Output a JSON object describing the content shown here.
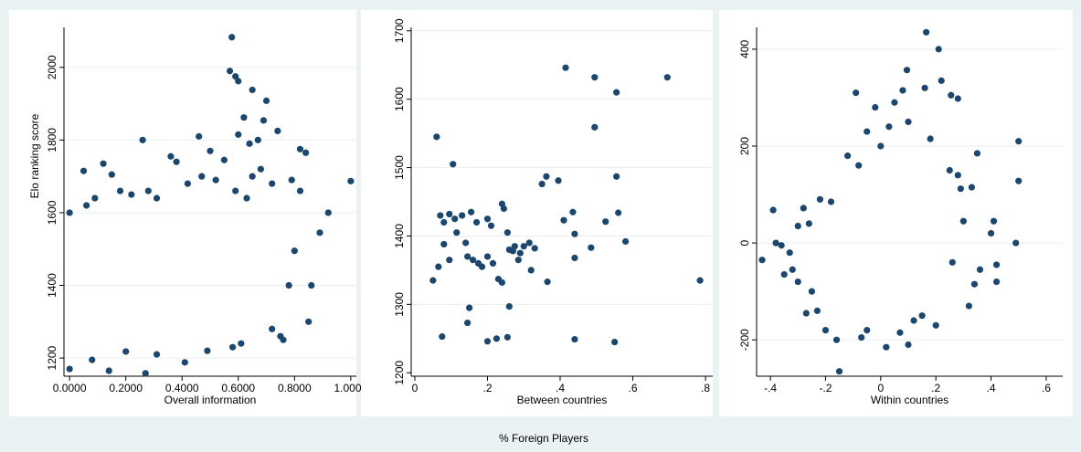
{
  "figure": {
    "shared_xlabel": "% Foreign Players",
    "background_color": "#eaf2f3",
    "panel_color": "#ffffff",
    "marker_color": "#1a476f",
    "grid_color": "#e9eff1"
  },
  "chart_data": [
    {
      "type": "scatter",
      "xlabel": "Overall information",
      "ylabel": "Elo ranking score",
      "xlim": [
        -0.02,
        1.02
      ],
      "ylim": [
        1150,
        2110
      ],
      "xticks": [
        0.0,
        0.2,
        0.4,
        0.6,
        0.8,
        1.0
      ],
      "xtick_labels": [
        "0.0000",
        "0.2000",
        "0.4000",
        "0.6000",
        "0.8000",
        "1.0000"
      ],
      "yticks": [
        1200,
        1400,
        1600,
        1800,
        2000
      ],
      "ytick_labels": [
        "1200",
        "1400",
        "1600",
        "1800",
        "2000"
      ],
      "grid": true,
      "points": [
        [
          0.577,
          2083
        ],
        [
          0.57,
          1990
        ],
        [
          0.6,
          1962
        ],
        [
          0.59,
          1975
        ],
        [
          0.65,
          1938
        ],
        [
          0.7,
          1908
        ],
        [
          0.62,
          1862
        ],
        [
          0.69,
          1854
        ],
        [
          0.74,
          1825
        ],
        [
          0.46,
          1810
        ],
        [
          0.26,
          1800
        ],
        [
          0.6,
          1815
        ],
        [
          0.64,
          1790
        ],
        [
          0.67,
          1800
        ],
        [
          0.82,
          1775
        ],
        [
          0.84,
          1765
        ],
        [
          1.0,
          1687
        ],
        [
          0.92,
          1600
        ],
        [
          0.89,
          1545
        ],
        [
          0.86,
          1400
        ],
        [
          0.85,
          1300
        ],
        [
          0.8,
          1495
        ],
        [
          0.78,
          1400
        ],
        [
          0.72,
          1280
        ],
        [
          0.75,
          1260
        ],
        [
          0.76,
          1250
        ],
        [
          0.61,
          1240
        ],
        [
          0.58,
          1230
        ],
        [
          0.2,
          1218
        ],
        [
          0.41,
          1188
        ],
        [
          0.14,
          1165
        ],
        [
          0.27,
          1158
        ],
        [
          0.0,
          1170
        ],
        [
          0.08,
          1195
        ],
        [
          0.31,
          1210
        ],
        [
          0.49,
          1220
        ],
        [
          0.0,
          1600
        ],
        [
          0.05,
          1715
        ],
        [
          0.12,
          1735
        ],
        [
          0.15,
          1705
        ],
        [
          0.36,
          1755
        ],
        [
          0.38,
          1740
        ],
        [
          0.5,
          1770
        ],
        [
          0.55,
          1745
        ],
        [
          0.65,
          1700
        ],
        [
          0.68,
          1720
        ],
        [
          0.72,
          1680
        ],
        [
          0.79,
          1690
        ],
        [
          0.82,
          1660
        ],
        [
          0.06,
          1620
        ],
        [
          0.09,
          1640
        ],
        [
          0.18,
          1660
        ],
        [
          0.22,
          1650
        ],
        [
          0.28,
          1660
        ],
        [
          0.31,
          1640
        ],
        [
          0.42,
          1680
        ],
        [
          0.47,
          1700
        ],
        [
          0.52,
          1690
        ],
        [
          0.59,
          1660
        ],
        [
          0.63,
          1640
        ]
      ]
    },
    {
      "type": "scatter",
      "xlabel": "Between countries",
      "ylabel": "",
      "xlim": [
        -0.01,
        0.82
      ],
      "ylim": [
        1195,
        1705
      ],
      "xticks": [
        0,
        0.2,
        0.4,
        0.6,
        0.8
      ],
      "xtick_labels": [
        "0",
        ".2",
        ".4",
        ".6",
        ".8"
      ],
      "yticks": [
        1200,
        1300,
        1400,
        1500,
        1600,
        1700
      ],
      "ytick_labels": [
        "1200",
        "1300",
        "1400",
        "1500",
        "1600",
        "1700"
      ],
      "grid": true,
      "points": [
        [
          0.415,
          1646
        ],
        [
          0.495,
          1632
        ],
        [
          0.555,
          1610
        ],
        [
          0.695,
          1632
        ],
        [
          0.495,
          1559
        ],
        [
          0.06,
          1545
        ],
        [
          0.105,
          1505
        ],
        [
          0.35,
          1476
        ],
        [
          0.362,
          1487
        ],
        [
          0.395,
          1481
        ],
        [
          0.555,
          1487
        ],
        [
          0.07,
          1430
        ],
        [
          0.095,
          1432
        ],
        [
          0.11,
          1425
        ],
        [
          0.13,
          1430
        ],
        [
          0.155,
          1435
        ],
        [
          0.2,
          1425
        ],
        [
          0.24,
          1447
        ],
        [
          0.245,
          1440
        ],
        [
          0.41,
          1423
        ],
        [
          0.435,
          1435
        ],
        [
          0.525,
          1421
        ],
        [
          0.56,
          1434
        ],
        [
          0.08,
          1420
        ],
        [
          0.115,
          1405
        ],
        [
          0.14,
          1390
        ],
        [
          0.17,
          1420
        ],
        [
          0.21,
          1415
        ],
        [
          0.255,
          1405
        ],
        [
          0.275,
          1385
        ],
        [
          0.3,
          1385
        ],
        [
          0.315,
          1390
        ],
        [
          0.44,
          1403
        ],
        [
          0.58,
          1392
        ],
        [
          0.485,
          1383
        ],
        [
          0.05,
          1335
        ],
        [
          0.065,
          1355
        ],
        [
          0.08,
          1388
        ],
        [
          0.095,
          1365
        ],
        [
          0.145,
          1370
        ],
        [
          0.16,
          1365
        ],
        [
          0.175,
          1360
        ],
        [
          0.185,
          1355
        ],
        [
          0.2,
          1370
        ],
        [
          0.215,
          1360
        ],
        [
          0.26,
          1380
        ],
        [
          0.29,
          1375
        ],
        [
          0.32,
          1350
        ],
        [
          0.365,
          1333
        ],
        [
          0.44,
          1368
        ],
        [
          0.15,
          1295
        ],
        [
          0.26,
          1297
        ],
        [
          0.145,
          1273
        ],
        [
          0.23,
          1337
        ],
        [
          0.24,
          1332
        ],
        [
          0.075,
          1253
        ],
        [
          0.2,
          1246
        ],
        [
          0.225,
          1250
        ],
        [
          0.255,
          1252
        ],
        [
          0.44,
          1249
        ],
        [
          0.55,
          1245
        ],
        [
          0.785,
          1335
        ],
        [
          0.285,
          1365
        ],
        [
          0.27,
          1378
        ],
        [
          0.33,
          1382
        ]
      ]
    },
    {
      "type": "scatter",
      "xlabel": "Within countries",
      "ylabel": "",
      "xlim": [
        -0.45,
        0.66
      ],
      "ylim": [
        -275,
        445
      ],
      "xticks": [
        -0.4,
        -0.2,
        0,
        0.2,
        0.4,
        0.6
      ],
      "xtick_labels": [
        "-.4",
        "-.2",
        "0",
        ".2",
        ".4",
        ".6"
      ],
      "yticks": [
        -200,
        0,
        200,
        400
      ],
      "ytick_labels": [
        "-200",
        "0",
        "200",
        "400"
      ],
      "grid": true,
      "points": [
        [
          0.165,
          435
        ],
        [
          0.21,
          400
        ],
        [
          0.095,
          357
        ],
        [
          0.22,
          335
        ],
        [
          0.16,
          320
        ],
        [
          0.255,
          305
        ],
        [
          0.28,
          298
        ],
        [
          -0.09,
          310
        ],
        [
          0.08,
          315
        ],
        [
          0.05,
          290
        ],
        [
          -0.02,
          280
        ],
        [
          0.5,
          210
        ],
        [
          0.35,
          185
        ],
        [
          0.5,
          128
        ],
        [
          0.33,
          115
        ],
        [
          0.29,
          112
        ],
        [
          0.4,
          20
        ],
        [
          0.49,
          0
        ],
        [
          0.41,
          45
        ],
        [
          0.42,
          -45
        ],
        [
          0.42,
          -80
        ],
        [
          0.36,
          -55
        ],
        [
          0.34,
          -85
        ],
        [
          -0.43,
          -35
        ],
        [
          -0.39,
          68
        ],
        [
          -0.38,
          0
        ],
        [
          -0.36,
          -5
        ],
        [
          -0.35,
          -65
        ],
        [
          -0.3,
          35
        ],
        [
          -0.28,
          72
        ],
        [
          -0.26,
          40
        ],
        [
          -0.27,
          -145
        ],
        [
          -0.23,
          -140
        ],
        [
          -0.2,
          -180
        ],
        [
          -0.16,
          -200
        ],
        [
          -0.15,
          -265
        ],
        [
          -0.07,
          -195
        ],
        [
          -0.05,
          -180
        ],
        [
          0.02,
          -215
        ],
        [
          0.07,
          -185
        ],
        [
          0.12,
          -160
        ],
        [
          0.15,
          -150
        ],
        [
          0.2,
          -170
        ],
        [
          0.1,
          -210
        ],
        [
          0.32,
          -130
        ],
        [
          -0.25,
          -100
        ],
        [
          -0.3,
          -80
        ],
        [
          -0.32,
          -55
        ],
        [
          -0.33,
          -20
        ],
        [
          -0.22,
          90
        ],
        [
          -0.18,
          85
        ],
        [
          -0.05,
          230
        ],
        [
          0.03,
          240
        ],
        [
          0.1,
          250
        ],
        [
          0.18,
          215
        ],
        [
          0.25,
          150
        ],
        [
          0.28,
          140
        ],
        [
          0.3,
          45
        ],
        [
          0.26,
          -40
        ],
        [
          -0.12,
          180
        ],
        [
          -0.08,
          160
        ],
        [
          0.0,
          200
        ]
      ]
    }
  ]
}
